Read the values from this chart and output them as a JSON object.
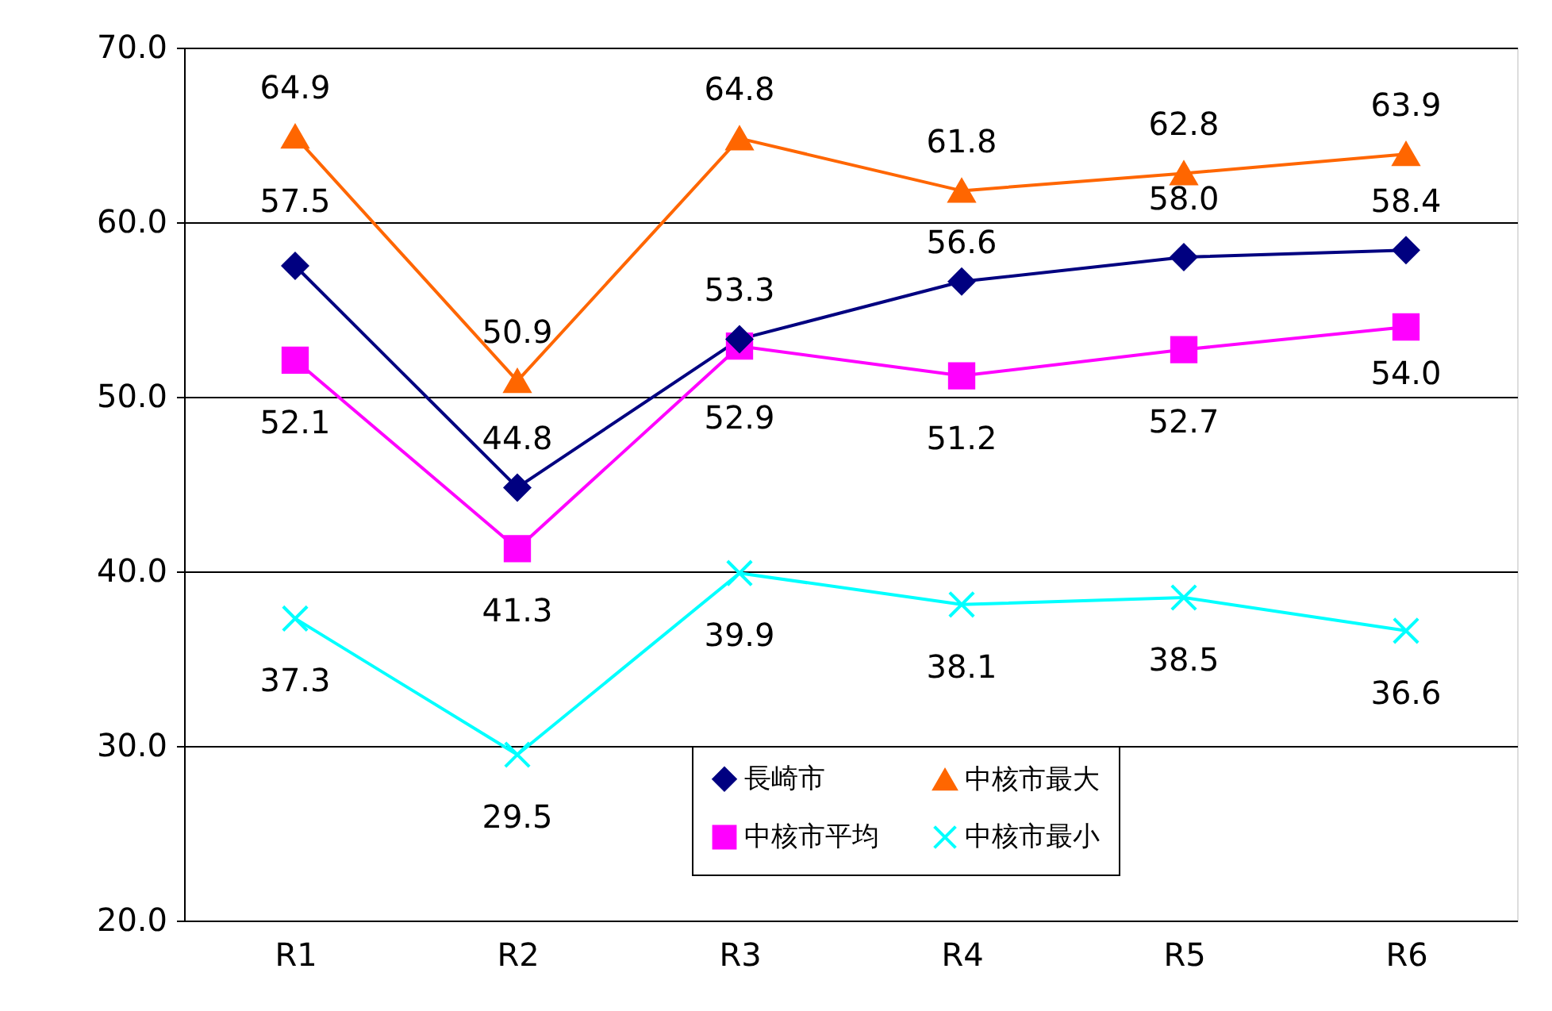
{
  "chart_data": {
    "type": "line",
    "categories": [
      "R1",
      "R2",
      "R3",
      "R4",
      "R5",
      "R6"
    ],
    "series": [
      {
        "name": "長崎市",
        "color": "#000080",
        "marker": "diamond",
        "values": [
          57.5,
          44.8,
          53.3,
          56.6,
          58.0,
          58.4
        ],
        "value_labels": [
          "57.5",
          "44.8",
          "53.3",
          "56.6",
          "58.0",
          "58.4"
        ]
      },
      {
        "name": "中核市平均",
        "color": "#ff00ff",
        "marker": "square",
        "values": [
          52.1,
          41.3,
          52.9,
          51.2,
          52.7,
          54.0
        ],
        "value_labels": [
          "52.1",
          "41.3",
          "52.9",
          "51.2",
          "52.7",
          "54.0"
        ]
      },
      {
        "name": "中核市最大",
        "color": "#ff6600",
        "marker": "triangle",
        "values": [
          64.9,
          50.9,
          64.8,
          61.8,
          62.8,
          63.9
        ],
        "value_labels": [
          "64.9",
          "50.9",
          "64.8",
          "61.8",
          "62.8",
          "63.9"
        ]
      },
      {
        "name": "中核市最小",
        "color": "#00ffff",
        "marker": "cross",
        "values": [
          37.3,
          29.5,
          39.9,
          38.1,
          38.5,
          36.6
        ],
        "value_labels": [
          "37.3",
          "29.5",
          "39.9",
          "38.1",
          "38.5",
          "36.6"
        ]
      }
    ],
    "ylim": [
      20,
      70
    ],
    "yticks": [
      {
        "value": 20,
        "label": "20.0"
      },
      {
        "value": 30,
        "label": "30.0"
      },
      {
        "value": 40,
        "label": "40.0"
      },
      {
        "value": 50,
        "label": "50.0"
      },
      {
        "value": 60,
        "label": "60.0"
      },
      {
        "value": 70,
        "label": "70.0"
      }
    ],
    "grid": "y",
    "legend": "bottom right",
    "line_style": "solid",
    "data_labels": true
  }
}
